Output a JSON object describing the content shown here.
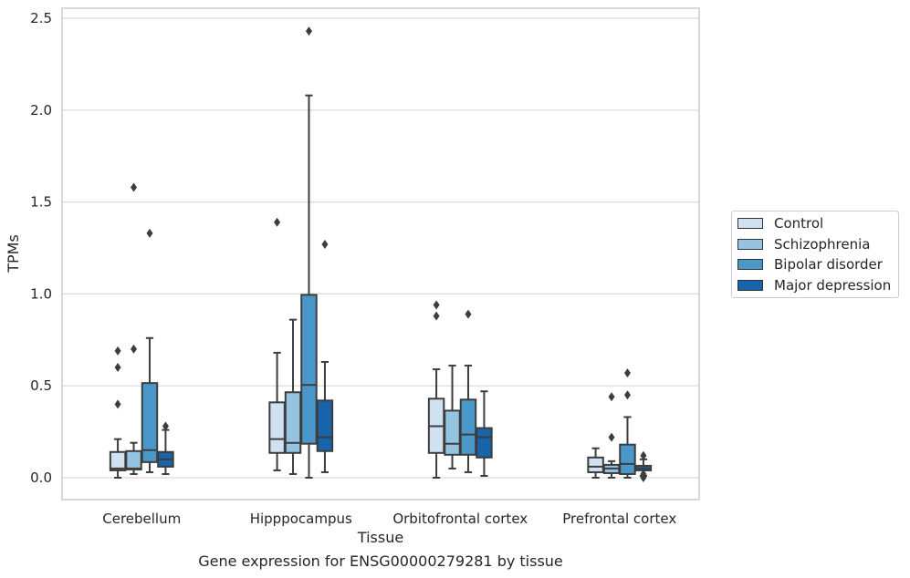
{
  "chart_data": {
    "type": "box",
    "title": "",
    "xlabel": "Tissue",
    "ylabel": "TPMs",
    "caption": "Gene expression for ENSG00000279281 by tissue",
    "ylim": [
      -0.12,
      2.56
    ],
    "yticks": [
      0.0,
      0.5,
      1.0,
      1.5,
      2.0,
      2.5
    ],
    "ytick_labels": [
      "0.0",
      "0.5",
      "1.0",
      "1.5",
      "2.0",
      "2.5"
    ],
    "grid": "horizontal",
    "legend_position": "right",
    "categories": [
      "Cerebellum",
      "Hipppocampus",
      "Orbitofrontal cortex",
      "Prefrontal cortex"
    ],
    "series": [
      {
        "name": "Control",
        "color": "#d0e1f2",
        "boxes": [
          {
            "whisker_low": 0.0,
            "q1": 0.04,
            "median": 0.05,
            "q3": 0.14,
            "whisker_high": 0.21,
            "outliers": [
              0.4,
              0.6,
              0.69
            ]
          },
          {
            "whisker_low": 0.04,
            "q1": 0.135,
            "median": 0.21,
            "q3": 0.41,
            "whisker_high": 0.68,
            "outliers": [
              1.39
            ]
          },
          {
            "whisker_low": 0.0,
            "q1": 0.135,
            "median": 0.28,
            "q3": 0.43,
            "whisker_high": 0.59,
            "outliers": [
              0.88,
              0.94
            ]
          },
          {
            "whisker_low": 0.0,
            "q1": 0.03,
            "median": 0.06,
            "q3": 0.11,
            "whisker_high": 0.16,
            "outliers": []
          }
        ]
      },
      {
        "name": "Schizophrenia",
        "color": "#94c4df",
        "boxes": [
          {
            "whisker_low": 0.02,
            "q1": 0.045,
            "median": 0.05,
            "q3": 0.145,
            "whisker_high": 0.19,
            "outliers": [
              0.7,
              1.58
            ]
          },
          {
            "whisker_low": 0.02,
            "q1": 0.135,
            "median": 0.19,
            "q3": 0.465,
            "whisker_high": 0.86,
            "outliers": []
          },
          {
            "whisker_low": 0.05,
            "q1": 0.125,
            "median": 0.185,
            "q3": 0.365,
            "whisker_high": 0.61,
            "outliers": []
          },
          {
            "whisker_low": 0.0,
            "q1": 0.025,
            "median": 0.05,
            "q3": 0.07,
            "whisker_high": 0.09,
            "outliers": [
              0.22,
              0.44
            ]
          }
        ]
      },
      {
        "name": "Bipolar disorder",
        "color": "#4a98c9",
        "boxes": [
          {
            "whisker_low": 0.03,
            "q1": 0.085,
            "median": 0.15,
            "q3": 0.515,
            "whisker_high": 0.76,
            "outliers": [
              1.33
            ]
          },
          {
            "whisker_low": 0.0,
            "q1": 0.185,
            "median": 0.505,
            "q3": 0.995,
            "whisker_high": 2.08,
            "outliers": [
              2.43
            ]
          },
          {
            "whisker_low": 0.03,
            "q1": 0.125,
            "median": 0.235,
            "q3": 0.425,
            "whisker_high": 0.61,
            "outliers": [
              0.89
            ]
          },
          {
            "whisker_low": 0.0,
            "q1": 0.02,
            "median": 0.075,
            "q3": 0.18,
            "whisker_high": 0.33,
            "outliers": [
              0.45,
              0.57
            ]
          }
        ]
      },
      {
        "name": "Major depression",
        "color": "#1764ab",
        "boxes": [
          {
            "whisker_low": 0.02,
            "q1": 0.06,
            "median": 0.1,
            "q3": 0.14,
            "whisker_high": 0.26,
            "outliers": [
              0.28
            ]
          },
          {
            "whisker_low": 0.03,
            "q1": 0.145,
            "median": 0.22,
            "q3": 0.42,
            "whisker_high": 0.63,
            "outliers": [
              1.27
            ]
          },
          {
            "whisker_low": 0.01,
            "q1": 0.11,
            "median": 0.22,
            "q3": 0.27,
            "whisker_high": 0.47,
            "outliers": []
          },
          {
            "whisker_low": 0.01,
            "q1": 0.04,
            "median": 0.05,
            "q3": 0.065,
            "whisker_high": 0.1,
            "outliers": [
              0.0,
              0.02,
              0.12
            ]
          }
        ]
      }
    ]
  }
}
